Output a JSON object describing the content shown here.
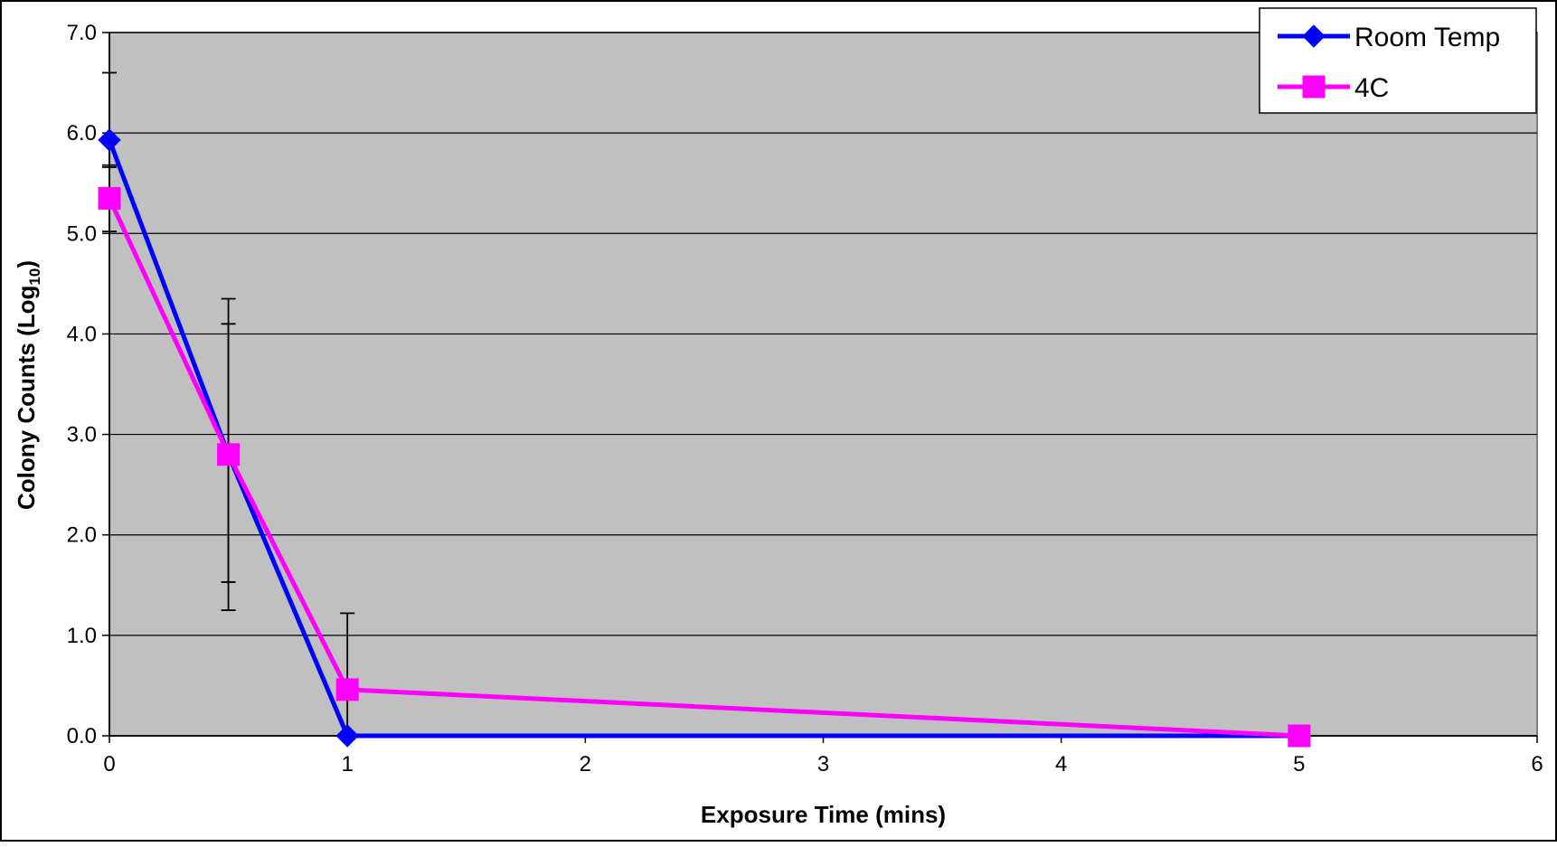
{
  "chart_data": {
    "type": "line",
    "xlabel": "Exposure Time (mins)",
    "ylabel_main": "Colony Counts (Log",
    "ylabel_sub": "10",
    "ylabel_close": ")",
    "xlim": [
      0,
      6
    ],
    "ylim": [
      0.0,
      7.0
    ],
    "x_ticks": [
      "0",
      "1",
      "2",
      "3",
      "4",
      "5",
      "6"
    ],
    "y_ticks": [
      "0.0",
      "1.0",
      "2.0",
      "3.0",
      "4.0",
      "5.0",
      "6.0",
      "7.0"
    ],
    "grid": true,
    "legend_position": "top-right",
    "plot_background": "#c0c0c0",
    "series": [
      {
        "name": "Room Temp",
        "color": "#0000ff",
        "marker": "diamond",
        "x": [
          0,
          0.5,
          1,
          5
        ],
        "y": [
          5.93,
          2.8,
          0.0,
          0.0
        ],
        "error_plus": [
          0.67,
          1.3,
          0,
          0
        ],
        "error_minus": [
          0.27,
          1.27,
          0,
          0
        ]
      },
      {
        "name": "4C",
        "color": "#ff00ff",
        "marker": "square",
        "x": [
          0,
          0.5,
          1,
          5
        ],
        "y": [
          5.35,
          2.8,
          0.46,
          0.0
        ],
        "error_plus": [
          0.33,
          1.55,
          0.76,
          0
        ],
        "error_minus": [
          0.33,
          1.55,
          0.46,
          0
        ]
      }
    ]
  }
}
